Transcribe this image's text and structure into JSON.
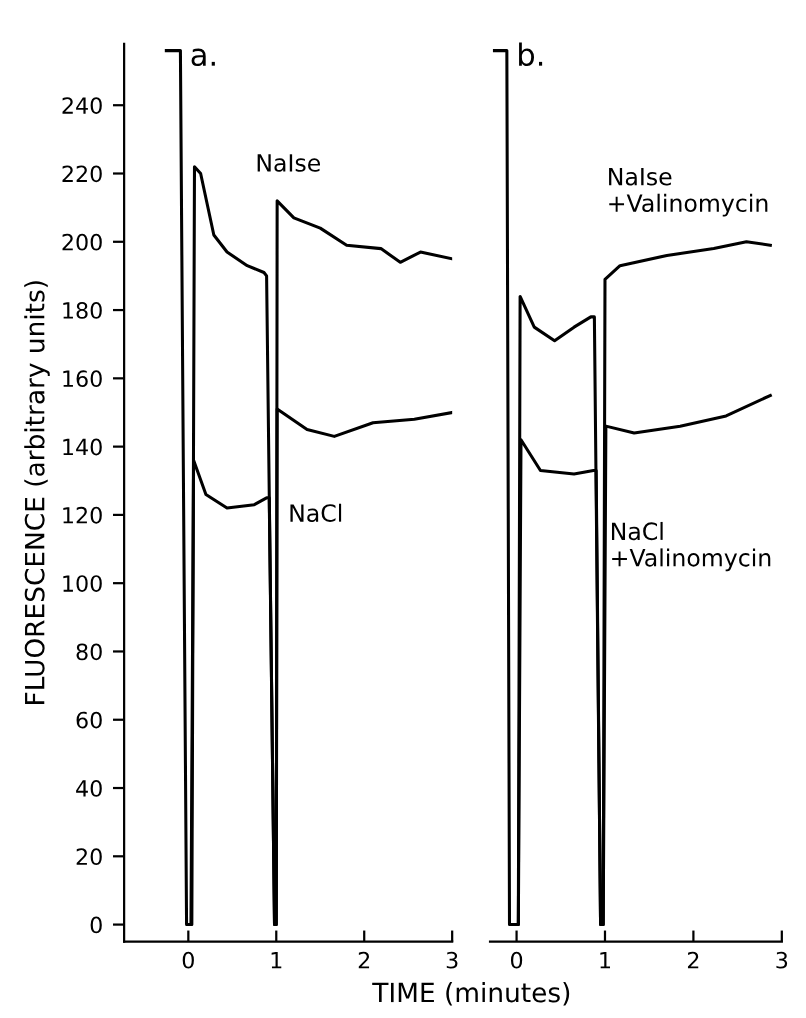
{
  "chart_data": [
    {
      "type": "line",
      "title": "a.",
      "xlabel": "TIME (minutes)",
      "ylabel": "FLUORESCENCE (arbitrary units)",
      "xlim": [
        -0.73,
        3.0
      ],
      "xticks": [
        0,
        1,
        2,
        3
      ],
      "ylim": [
        -5,
        258
      ],
      "yticks": [
        0,
        20,
        40,
        60,
        80,
        100,
        120,
        140,
        160,
        180,
        200,
        220,
        240
      ],
      "grid": false,
      "legend": false,
      "series": [
        {
          "color": "#000000",
          "x": [
            -0.25,
            -0.09,
            -0.02,
            0.0,
            0.04,
            0.07,
            0.14,
            0.29,
            0.44,
            0.67,
            0.86,
            0.89,
            0.98,
            1.0,
            1.01,
            1.2,
            1.5,
            1.8,
            2.19,
            2.41,
            2.64,
            3.0
          ],
          "values": [
            256,
            256,
            0,
            0,
            0,
            222,
            220,
            202,
            197,
            193,
            191,
            190,
            0,
            0,
            212,
            207,
            204,
            199,
            198,
            194,
            197,
            195
          ]
        },
        {
          "color": "#000000",
          "x": [
            0.0,
            0.03,
            0.06,
            0.2,
            0.44,
            0.75,
            0.89,
            0.92,
            0.98,
            1.0,
            1.01,
            1.35,
            1.66,
            2.1,
            2.57,
            3.0
          ],
          "values": [
            0,
            0,
            136,
            126,
            122,
            123,
            125,
            125,
            0,
            0,
            151,
            145,
            143,
            147,
            148,
            150
          ]
        }
      ],
      "annotations": [
        "NaIse",
        "NaCl"
      ]
    },
    {
      "type": "line",
      "title": "b.",
      "tick_labels": "x",
      "xlim": [
        -0.3,
        3.0
      ],
      "xticks": [
        0,
        1,
        2,
        3
      ],
      "yticks": [
        0,
        20,
        40,
        60,
        80,
        100,
        120,
        140,
        160,
        180,
        200,
        220,
        240
      ],
      "grid": false,
      "legend": false,
      "series": [
        {
          "color": "#000000",
          "x": [
            -0.25,
            -0.11,
            -0.08,
            0.0,
            0.02,
            0.04,
            0.2,
            0.43,
            0.65,
            0.84,
            0.88,
            0.95,
            0.98,
            1.0,
            1.17,
            1.7,
            2.23,
            2.6,
            2.87
          ],
          "values": [
            256,
            256,
            0,
            0,
            0,
            184,
            175,
            171,
            175,
            178,
            178,
            0,
            0,
            189,
            193,
            196,
            198,
            200,
            199
          ]
        },
        {
          "color": "#000000",
          "x": [
            0.0,
            0.02,
            0.05,
            0.27,
            0.65,
            0.87,
            0.9,
            0.95,
            0.98,
            1.01,
            1.33,
            1.85,
            2.37,
            2.87
          ],
          "values": [
            0,
            0,
            142,
            133,
            132,
            133,
            133,
            0,
            0,
            146,
            144,
            146,
            149,
            155
          ]
        }
      ],
      "annotations": [
        "NaIse\n+Valinomycin",
        "NaCl\n+Valinomycin"
      ]
    }
  ]
}
